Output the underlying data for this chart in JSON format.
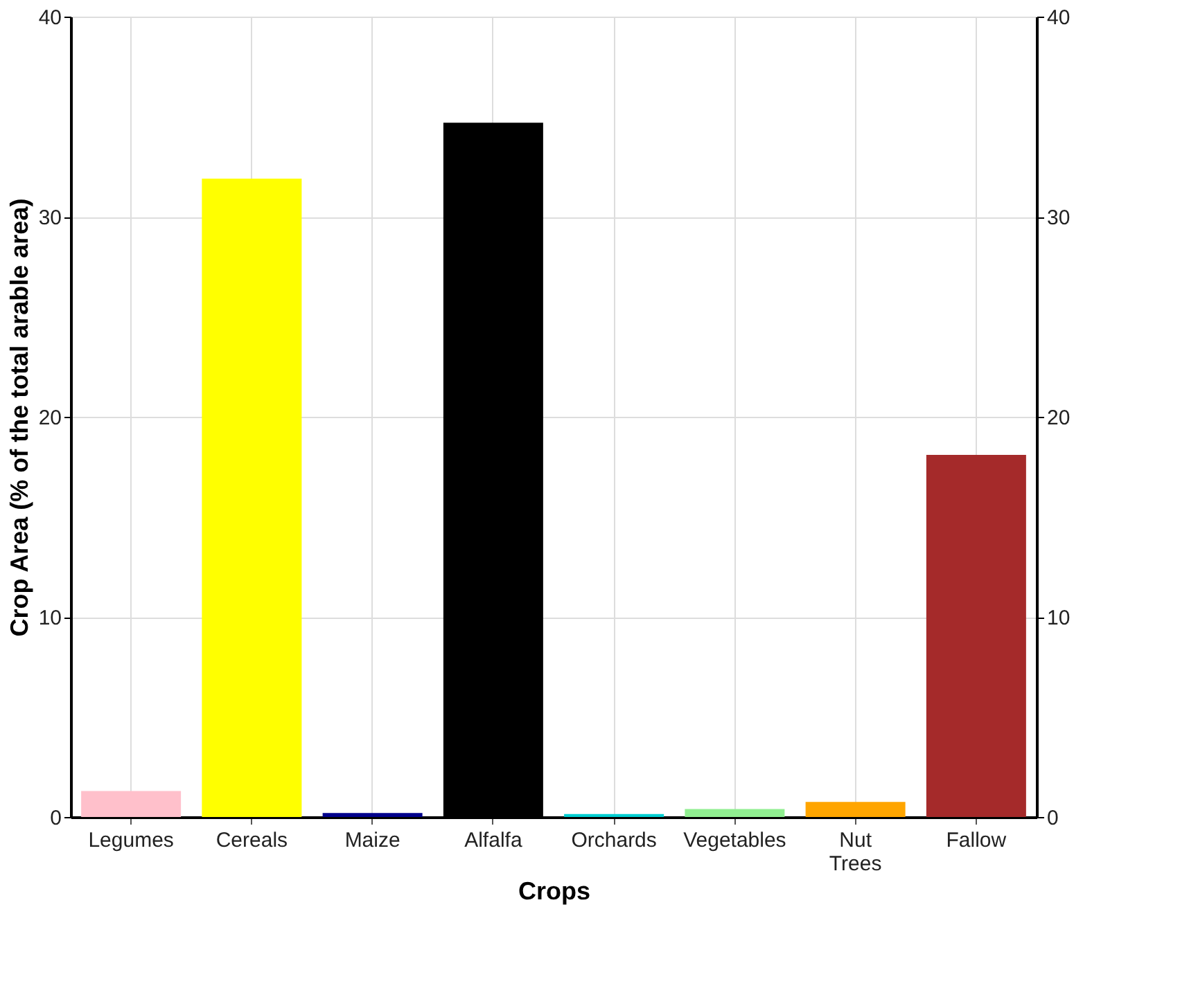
{
  "chart_data": {
    "type": "bar",
    "xlabel": "Crops",
    "ylabel": "Crop Area (% of the total arable area)",
    "categories": [
      "Legumes",
      "Cereals",
      "Maize",
      "Alfalfa",
      "Orchards",
      "Vegetables",
      "Nut Trees",
      "Fallow"
    ],
    "values": [
      1.3,
      31.9,
      0.2,
      34.7,
      0.15,
      0.4,
      0.75,
      18.1
    ],
    "colors": [
      "#ffc0cb",
      "#ffff00",
      "#00008b",
      "#000000",
      "#00ced1",
      "#90ee90",
      "#ffa500",
      "#a52a2a"
    ],
    "ylim": [
      0,
      40
    ],
    "yticks": [
      0,
      10,
      20,
      30,
      40
    ],
    "y2lim": [
      0,
      40
    ],
    "y2ticks": [
      0,
      10,
      20,
      30,
      40
    ],
    "grid": true
  }
}
